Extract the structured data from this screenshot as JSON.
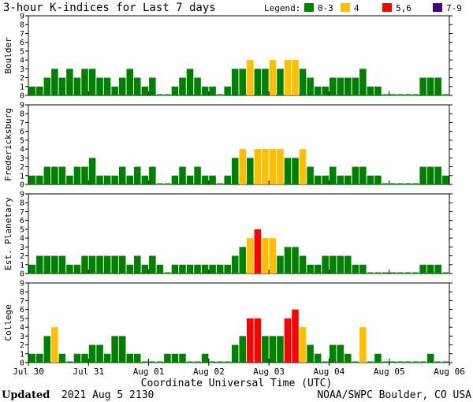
{
  "chart_data": {
    "type": "bar",
    "title": "3-hour K-indices for Last 7 days",
    "legend": {
      "label": "Legend:",
      "items": [
        {
          "label": "0-3",
          "color": "#008000"
        },
        {
          "label": "4",
          "color": "#ffbf00"
        },
        {
          "label": "5,6",
          "color": "#ff0000"
        },
        {
          "label": "7-9",
          "color": "#400080"
        }
      ]
    },
    "xlabel": "Coordinate Universal Time (UTC)",
    "x_ticks": [
      "Jul 30",
      "Jul 31",
      "Aug 01",
      "Aug 02",
      "Aug 03",
      "Aug 04",
      "Aug 05",
      "Aug 06"
    ],
    "ylim": [
      0,
      9
    ],
    "y_ticks": [
      0,
      1,
      2,
      3,
      4,
      5,
      6,
      7,
      8,
      9
    ],
    "series": [
      {
        "name": "Boulder",
        "values": [
          1,
          1,
          2,
          3,
          2,
          3,
          2,
          3,
          3,
          2,
          2,
          1,
          2,
          3,
          2,
          1,
          2,
          0,
          0,
          1,
          2,
          3,
          2,
          1,
          1,
          0,
          1,
          3,
          3,
          4,
          3,
          3,
          4,
          3,
          4,
          4,
          3,
          2,
          1,
          1,
          2,
          2,
          2,
          2,
          3,
          1,
          1,
          0,
          0,
          0,
          0,
          0,
          2,
          2,
          2,
          0
        ]
      },
      {
        "name": "Fredericksburg",
        "values": [
          1,
          1,
          2,
          2,
          2,
          1,
          2,
          2,
          3,
          1,
          1,
          1,
          2,
          1,
          2,
          1,
          2,
          0,
          0,
          1,
          2,
          1,
          2,
          1,
          1,
          0,
          1,
          3,
          4,
          3,
          4,
          4,
          4,
          4,
          3,
          3,
          4,
          2,
          1,
          1,
          2,
          1,
          1,
          2,
          2,
          1,
          1,
          0,
          0,
          0,
          0,
          0,
          2,
          2,
          2,
          1
        ]
      },
      {
        "name": "Est. Planetary",
        "values": [
          1,
          2,
          2,
          2,
          2,
          1,
          1,
          2,
          2,
          2,
          2,
          2,
          2,
          1,
          2,
          1,
          2,
          1,
          0,
          1,
          1,
          1,
          1,
          1,
          1,
          1,
          1,
          2,
          3,
          4,
          5,
          4,
          4,
          2,
          3,
          3,
          2,
          1,
          1,
          2,
          2,
          2,
          2,
          1,
          1,
          0,
          0,
          0,
          0,
          0,
          0,
          0,
          1,
          1,
          1,
          0
        ]
      },
      {
        "name": "College",
        "values": [
          1,
          1,
          3,
          4,
          1,
          0,
          1,
          1,
          2,
          2,
          1,
          3,
          3,
          1,
          1,
          0,
          0,
          0,
          1,
          1,
          1,
          0,
          0,
          1,
          0,
          0,
          0,
          2,
          3,
          5,
          5,
          3,
          3,
          3,
          5,
          6,
          4,
          2,
          1,
          0,
          2,
          2,
          1,
          0,
          4,
          0,
          1,
          0,
          0,
          0,
          0,
          0,
          0,
          1,
          0,
          0
        ]
      }
    ]
  },
  "footer": {
    "updated_label": "Updated",
    "updated_time": "2021 Aug  5 2130",
    "credit": "NOAA/SWPC Boulder, CO USA"
  }
}
